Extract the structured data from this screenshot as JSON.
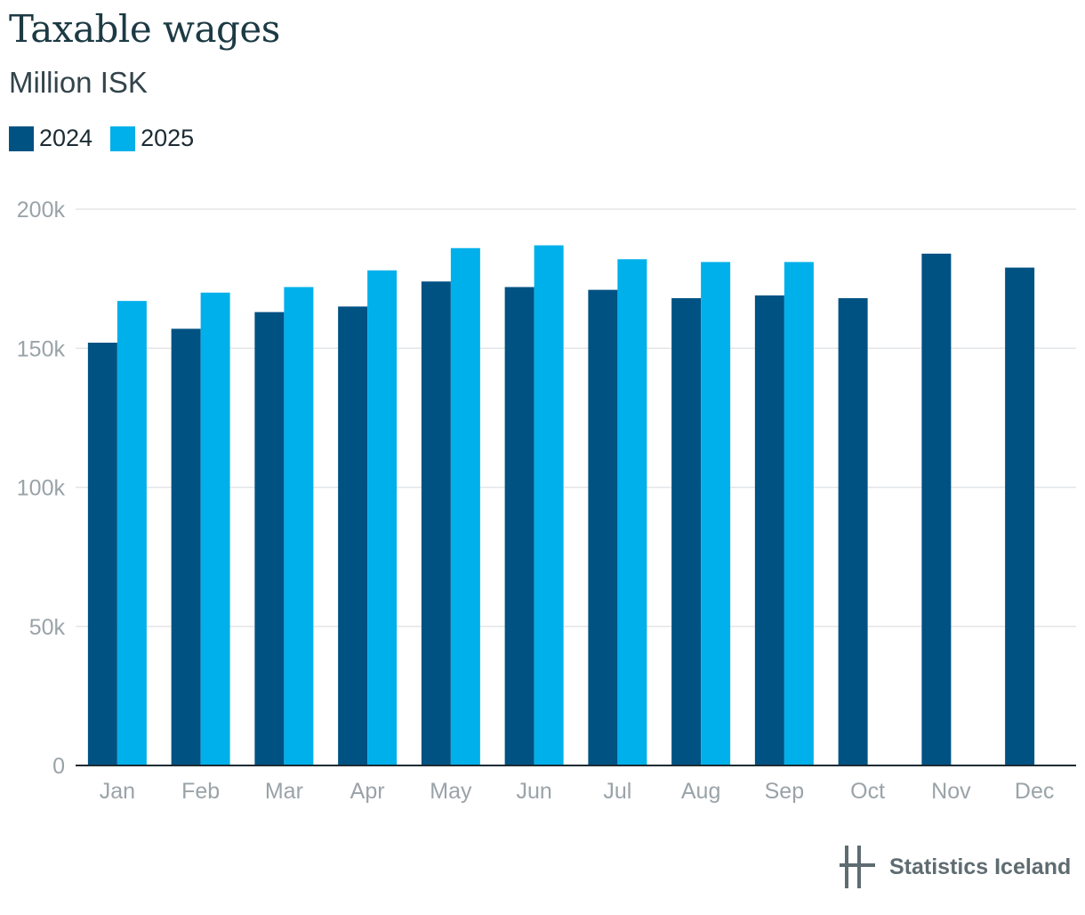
{
  "title": "Taxable wages",
  "subtitle": "Million ISK",
  "logo": {
    "icon": "statistics-iceland-logo-icon",
    "text": "Statistics Iceland"
  },
  "colors": {
    "series2024": "#005283",
    "series2025": "#00b0ea",
    "grid": "#e3e6e8",
    "axis": "#1c2b33"
  },
  "chart_data": {
    "type": "bar",
    "title": "Taxable wages",
    "subtitle": "Million ISK",
    "xlabel": "",
    "ylabel": "",
    "ylim": [
      0,
      200000
    ],
    "yticks": [
      0,
      50000,
      100000,
      150000,
      200000
    ],
    "ytick_labels": [
      "0",
      "50k",
      "100k",
      "150k",
      "200k"
    ],
    "grid": true,
    "legend_position": "top-left",
    "categories": [
      "Jan",
      "Feb",
      "Mar",
      "Apr",
      "May",
      "Jun",
      "Jul",
      "Aug",
      "Sep",
      "Oct",
      "Nov",
      "Dec"
    ],
    "series": [
      {
        "name": "2024",
        "color": "#005283",
        "values": [
          152000,
          157000,
          163000,
          165000,
          174000,
          172000,
          171000,
          168000,
          169000,
          168000,
          184000,
          179000
        ]
      },
      {
        "name": "2025",
        "color": "#00b0ea",
        "values": [
          167000,
          170000,
          172000,
          178000,
          186000,
          187000,
          182000,
          181000,
          181000,
          null,
          null,
          null
        ]
      }
    ]
  }
}
